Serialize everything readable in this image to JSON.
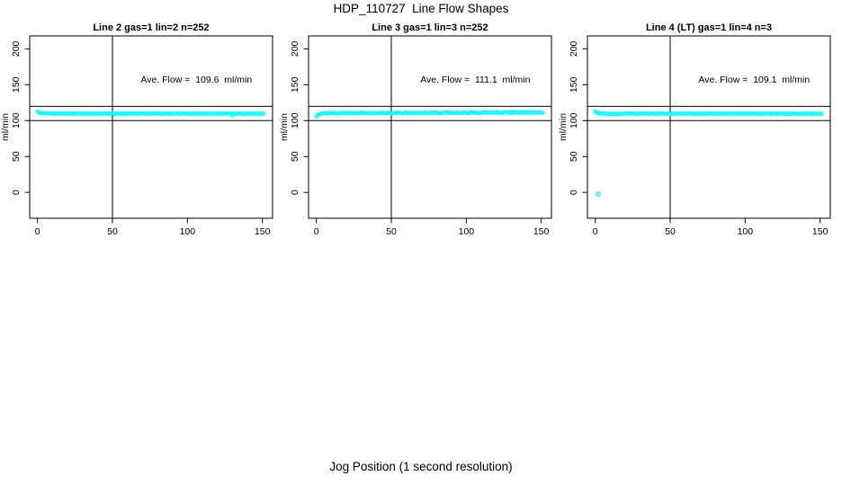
{
  "page": {
    "title": "HDP_110727  Line Flow Shapes",
    "outer_xlabel": "Jog Position (1 second resolution)",
    "background_color": "#FFFFFF",
    "axis_color": "#000000"
  },
  "chart_data": [
    {
      "type": "scatter",
      "title": "Line 2 gas=1 lin=2 n=252",
      "ylabel": "ml/min",
      "annotation": "Ave. Flow =  109.6  ml/min",
      "ave_flow_ml_min": 109.6,
      "n": 252,
      "marker_color": "#00FFFF",
      "xlim": [
        -5.2,
        156.8
      ],
      "ylim": [
        -36,
        218
      ],
      "xticks": [
        0,
        50,
        100,
        150
      ],
      "yticks": [
        0,
        50,
        100,
        150,
        200
      ],
      "vline_x": 50,
      "hlines_y": [
        100,
        120
      ],
      "annotation_pos": [
        106,
        153
      ],
      "points": {
        "x_start": 0,
        "x_end": 151,
        "step": 1,
        "profile": [
          [
            0,
            112.8
          ],
          [
            1,
            111.2
          ],
          [
            3,
            110.2
          ],
          [
            8,
            109.9
          ],
          [
            151,
            109.7
          ]
        ],
        "jitter": 0.3
      },
      "outliers": [
        [
          130,
          107.8
        ]
      ]
    },
    {
      "type": "scatter",
      "title": "Line 3 gas=1 lin=3 n=252",
      "ylabel": "ml/min",
      "annotation": "Ave. Flow =  111.1  ml/min",
      "ave_flow_ml_min": 111.1,
      "n": 252,
      "marker_color": "#00FFFF",
      "xlim": [
        -5.2,
        156.8
      ],
      "ylim": [
        -36,
        218
      ],
      "xticks": [
        0,
        50,
        100,
        150
      ],
      "yticks": [
        0,
        50,
        100,
        150,
        200
      ],
      "vline_x": 50,
      "hlines_y": [
        100,
        120
      ],
      "annotation_pos": [
        106,
        153
      ],
      "points": {
        "x_start": 0,
        "x_end": 151,
        "step": 1,
        "profile": [
          [
            0,
            105.8
          ],
          [
            1,
            107.3
          ],
          [
            2,
            108.7
          ],
          [
            4,
            109.9
          ],
          [
            10,
            110.4
          ],
          [
            50,
            110.8
          ],
          [
            100,
            111.1
          ],
          [
            151,
            111.4
          ]
        ],
        "jitter": 0.55
      },
      "outliers": []
    },
    {
      "type": "scatter",
      "title": "Line 4 (LT) gas=1 lin=4 n=3",
      "ylabel": "ml/min",
      "annotation": "Ave. Flow =  109.1  ml/min",
      "ave_flow_ml_min": 109.1,
      "n": 3,
      "marker_color": "#00FFFF",
      "xlim": [
        -5.2,
        156.8
      ],
      "ylim": [
        -36,
        218
      ],
      "xticks": [
        0,
        50,
        100,
        150
      ],
      "yticks": [
        0,
        50,
        100,
        150,
        200
      ],
      "vline_x": 50,
      "hlines_y": [
        100,
        120
      ],
      "annotation_pos": [
        106,
        153
      ],
      "points": {
        "x_start": 0,
        "x_end": 151,
        "step": 1,
        "profile": [
          [
            0,
            112.9
          ],
          [
            1,
            111.6
          ],
          [
            2,
            110.4
          ],
          [
            6,
            109.9
          ],
          [
            10,
            109.1
          ],
          [
            16,
            109.4
          ],
          [
            24,
            109.8
          ],
          [
            151,
            109.6
          ]
        ],
        "jitter": 0.35
      },
      "outliers": [
        [
          2,
          -2.5
        ]
      ]
    }
  ]
}
